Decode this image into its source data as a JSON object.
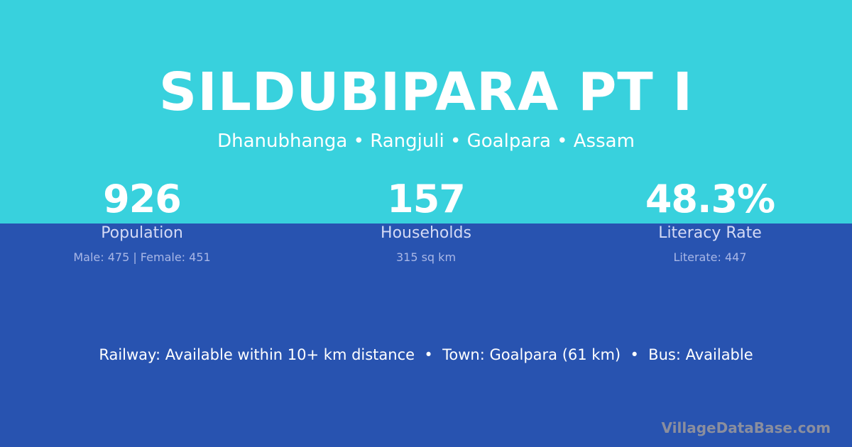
{
  "header": {
    "title": "SILDUBIPARA PT I",
    "subtitle": "Dhanubhanga • Rangjuli • Goalpara • Assam"
  },
  "stats": [
    {
      "value": "926",
      "label": "Population",
      "detail": "Male: 475 | Female: 451"
    },
    {
      "value": "157",
      "label": "Households",
      "detail": "315 sq km"
    },
    {
      "value": "48.3%",
      "label": "Literacy Rate",
      "detail": "Literate: 447"
    }
  ],
  "info": "Railway: Available within 10+ km distance  •  Town: Goalpara (61 km)  •  Bus: Available",
  "brand": "VillageDataBase.com",
  "colors": {
    "top": "#38D1DD",
    "bottom": "#2853B0"
  }
}
